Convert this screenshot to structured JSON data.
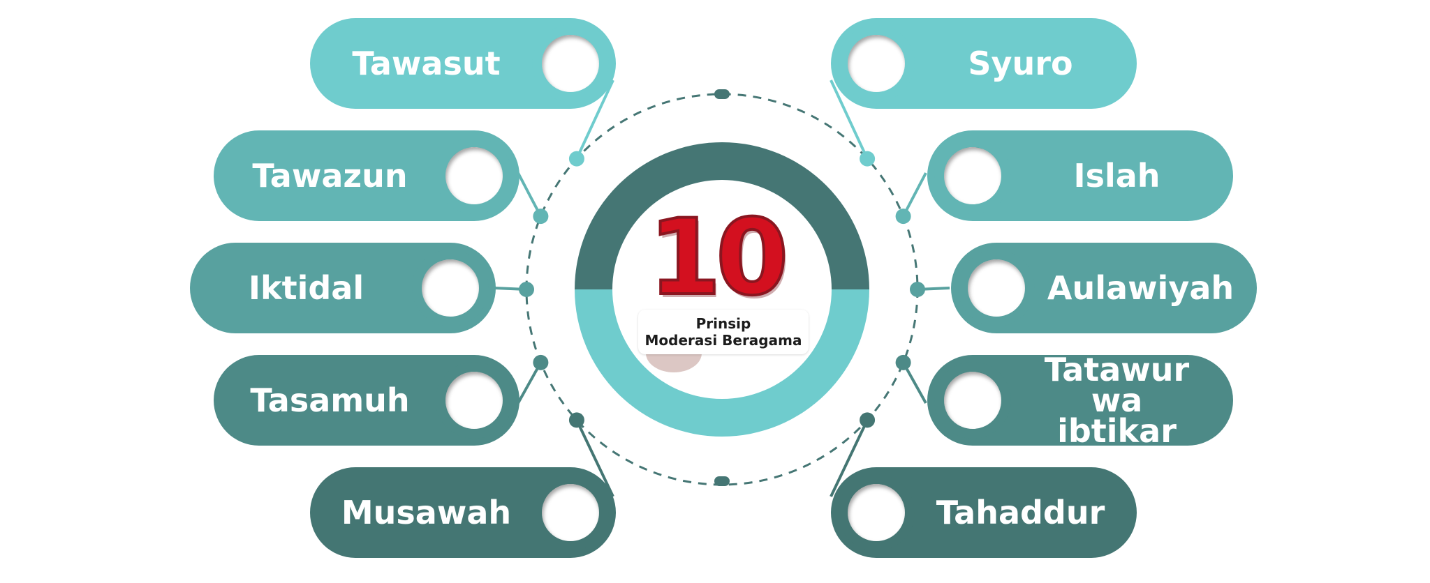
{
  "diagram": {
    "center": {
      "number": "10",
      "caption_line1": "Prinsip",
      "caption_line2": "Moderasi Beragama"
    },
    "principles_left": [
      {
        "label": "Tawasut",
        "color": "#6fcccd"
      },
      {
        "label": "Tawazun",
        "color": "#62b5b4"
      },
      {
        "label": "Iktidal",
        "color": "#58a19f"
      },
      {
        "label": "Tasamuh",
        "color": "#4d8a87"
      },
      {
        "label": "Musawah",
        "color": "#447673"
      }
    ],
    "principles_right": [
      {
        "label": "Syuro",
        "color": "#6fcccd"
      },
      {
        "label": "Islah",
        "color": "#62b5b4"
      },
      {
        "label": "Aulawiyah",
        "color": "#58a19f"
      },
      {
        "label": "Tatawur\nwa ibtikar",
        "color": "#4d8a87"
      },
      {
        "label": "Tahaddur",
        "color": "#447673"
      }
    ],
    "colors": {
      "ring_top": "#457674",
      "ring_bottom": "#6fcccd",
      "dashed_circle": "#457674",
      "number_red": "#d3101f"
    }
  }
}
